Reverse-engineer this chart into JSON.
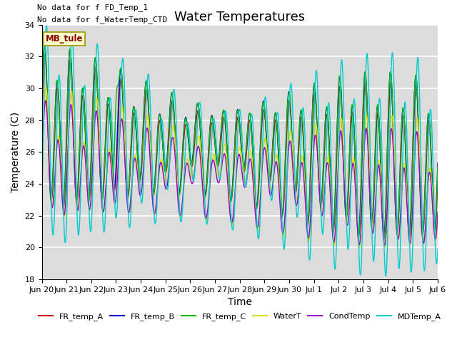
{
  "title": "Water Temperatures",
  "xlabel": "Time",
  "ylabel": "Temperature (C)",
  "ylim": [
    18,
    34
  ],
  "bg_color": "#dcdcdc",
  "annotations": [
    "No data for f FD_Temp_1",
    "No data for f_WaterTemp_CTD"
  ],
  "mb_tule_label": "MB_tule",
  "legend_entries": [
    "FR_temp_A",
    "FR_temp_B",
    "FR_temp_C",
    "WaterT",
    "CondTemp",
    "MDTemp_A"
  ],
  "legend_colors": [
    "#cc0000",
    "#0000cc",
    "#00bb00",
    "#dddd00",
    "#9900cc",
    "#00cccc"
  ],
  "line_colors": [
    "#cc0000",
    "#0000cc",
    "#00bb00",
    "#dddd00",
    "#9900cc",
    "#00cccc"
  ],
  "xtick_labels": [
    "Jun 20",
    "Jun 21",
    "Jun 22",
    "Jun 23",
    "Jun 24",
    "Jun 25",
    "Jun 26",
    "Jun 27",
    "Jun 28",
    "Jun 29",
    "Jun 30",
    "Jul 1",
    "Jul 2",
    "Jul 3",
    "Jul 4",
    "Jul 5",
    "Jul 6"
  ],
  "ytick_labels": [
    18,
    20,
    22,
    24,
    26,
    28,
    30,
    32,
    34
  ],
  "title_fontsize": 13,
  "axis_fontsize": 10,
  "tick_fontsize": 8,
  "legend_fontsize": 8,
  "annotation_fontsize": 8
}
